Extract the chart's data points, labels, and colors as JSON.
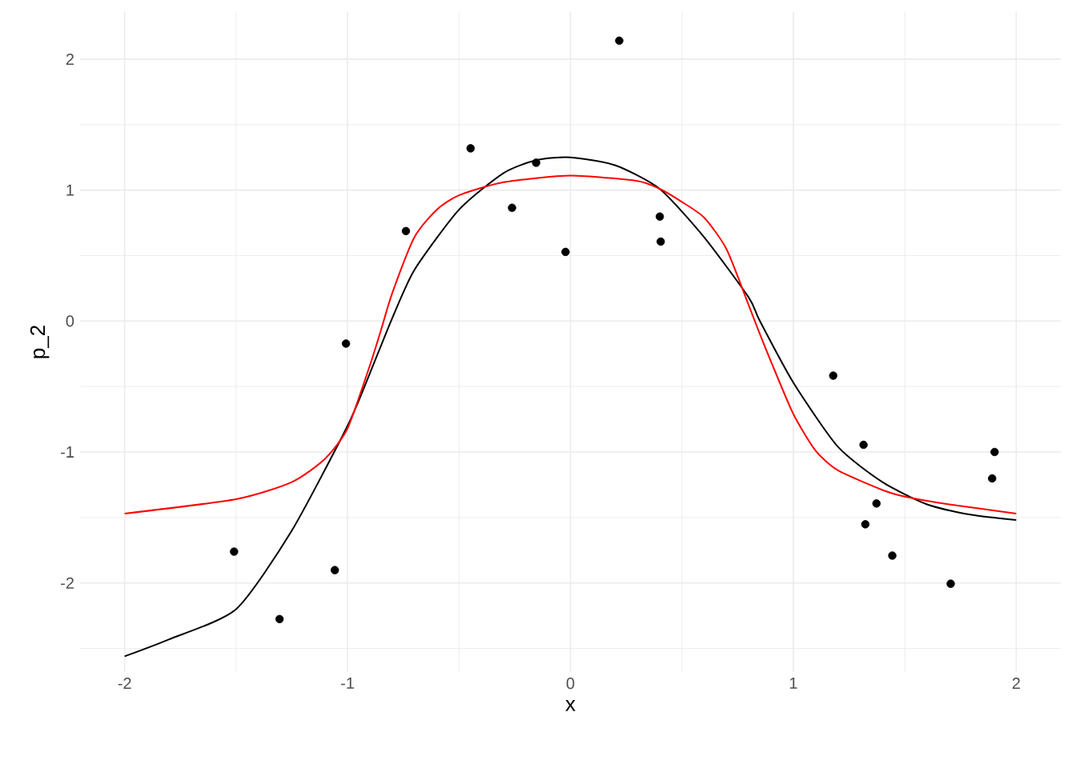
{
  "chart_data": {
    "type": "line",
    "xlabel": "x",
    "ylabel": "p_2",
    "xlim": [
      -2.2,
      2.2
    ],
    "ylim": [
      -2.68,
      2.36
    ],
    "xticks": [
      -2,
      {
        "value": -1.5,
        "label": null
      },
      -1,
      {
        "value": -0.5,
        "label": null
      },
      0,
      {
        "value": 0.5,
        "label": null
      },
      1,
      {
        "value": 1.5,
        "label": null
      },
      2
    ],
    "yticks": [
      {
        "value": -2.5,
        "label": null
      },
      -2,
      {
        "value": -1.5,
        "label": null
      },
      -1,
      {
        "value": -0.5,
        "label": null
      },
      0,
      {
        "value": 0.5,
        "label": null
      },
      1,
      {
        "value": 1.5,
        "label": null
      },
      2
    ],
    "grid": true,
    "series": [
      {
        "type": "scatter",
        "marker": "circle",
        "color": "#000000",
        "x": [
          -1.509,
          -1.305,
          -1.057,
          -1.007,
          -0.738,
          -0.448,
          -0.262,
          -0.154,
          -0.022,
          0.219,
          0.401,
          0.405,
          1.179,
          1.315,
          1.323,
          1.373,
          1.444,
          1.706,
          1.892,
          1.903
        ],
        "values": [
          -1.761,
          -2.276,
          -1.902,
          -0.172,
          0.687,
          1.319,
          0.865,
          1.209,
          0.528,
          2.141,
          0.798,
          0.607,
          -0.417,
          -0.945,
          -1.552,
          -1.393,
          -1.791,
          -2.006,
          -1.202,
          -1.0
        ]
      },
      {
        "color": "#000000",
        "x": [
          -2,
          -1.8,
          -1.5,
          -1.25,
          -1,
          -0.9,
          -0.8,
          -0.7,
          -0.5,
          -0.3,
          -0.15,
          0,
          0.2,
          0.4,
          0.6,
          0.8,
          0.85,
          1.0,
          1.2,
          1.4,
          1.6,
          1.8,
          2
        ],
        "values": [
          -2.56,
          -2.43,
          -2.2,
          -1.6,
          -0.8,
          -0.4,
          0.02,
          0.39,
          0.85,
          1.13,
          1.23,
          1.25,
          1.19,
          1.01,
          0.64,
          0.18,
          0,
          -0.47,
          -0.96,
          -1.23,
          -1.4,
          -1.48,
          -1.52
        ]
      },
      {
        "color": "#ff0000",
        "x": [
          -2,
          -1.5,
          -1.25,
          -1.1,
          -1,
          -0.9,
          -0.85,
          -0.8,
          -0.7,
          -0.6,
          -0.5,
          -0.3,
          0,
          0.3,
          0.4,
          0.5,
          0.6,
          0.7,
          0.8,
          0.85,
          0.9,
          1.0,
          1.1,
          1.2,
          1.4,
          1.5,
          1.7,
          2
        ],
        "values": [
          -1.47,
          -1.36,
          -1.23,
          -1.05,
          -0.82,
          -0.34,
          -0.07,
          0.21,
          0.64,
          0.85,
          0.96,
          1.06,
          1.11,
          1.07,
          1.01,
          0.91,
          0.79,
          0.55,
          0.12,
          -0.1,
          -0.31,
          -0.71,
          -0.99,
          -1.14,
          -1.29,
          -1.34,
          -1.4,
          -1.47
        ]
      }
    ]
  }
}
